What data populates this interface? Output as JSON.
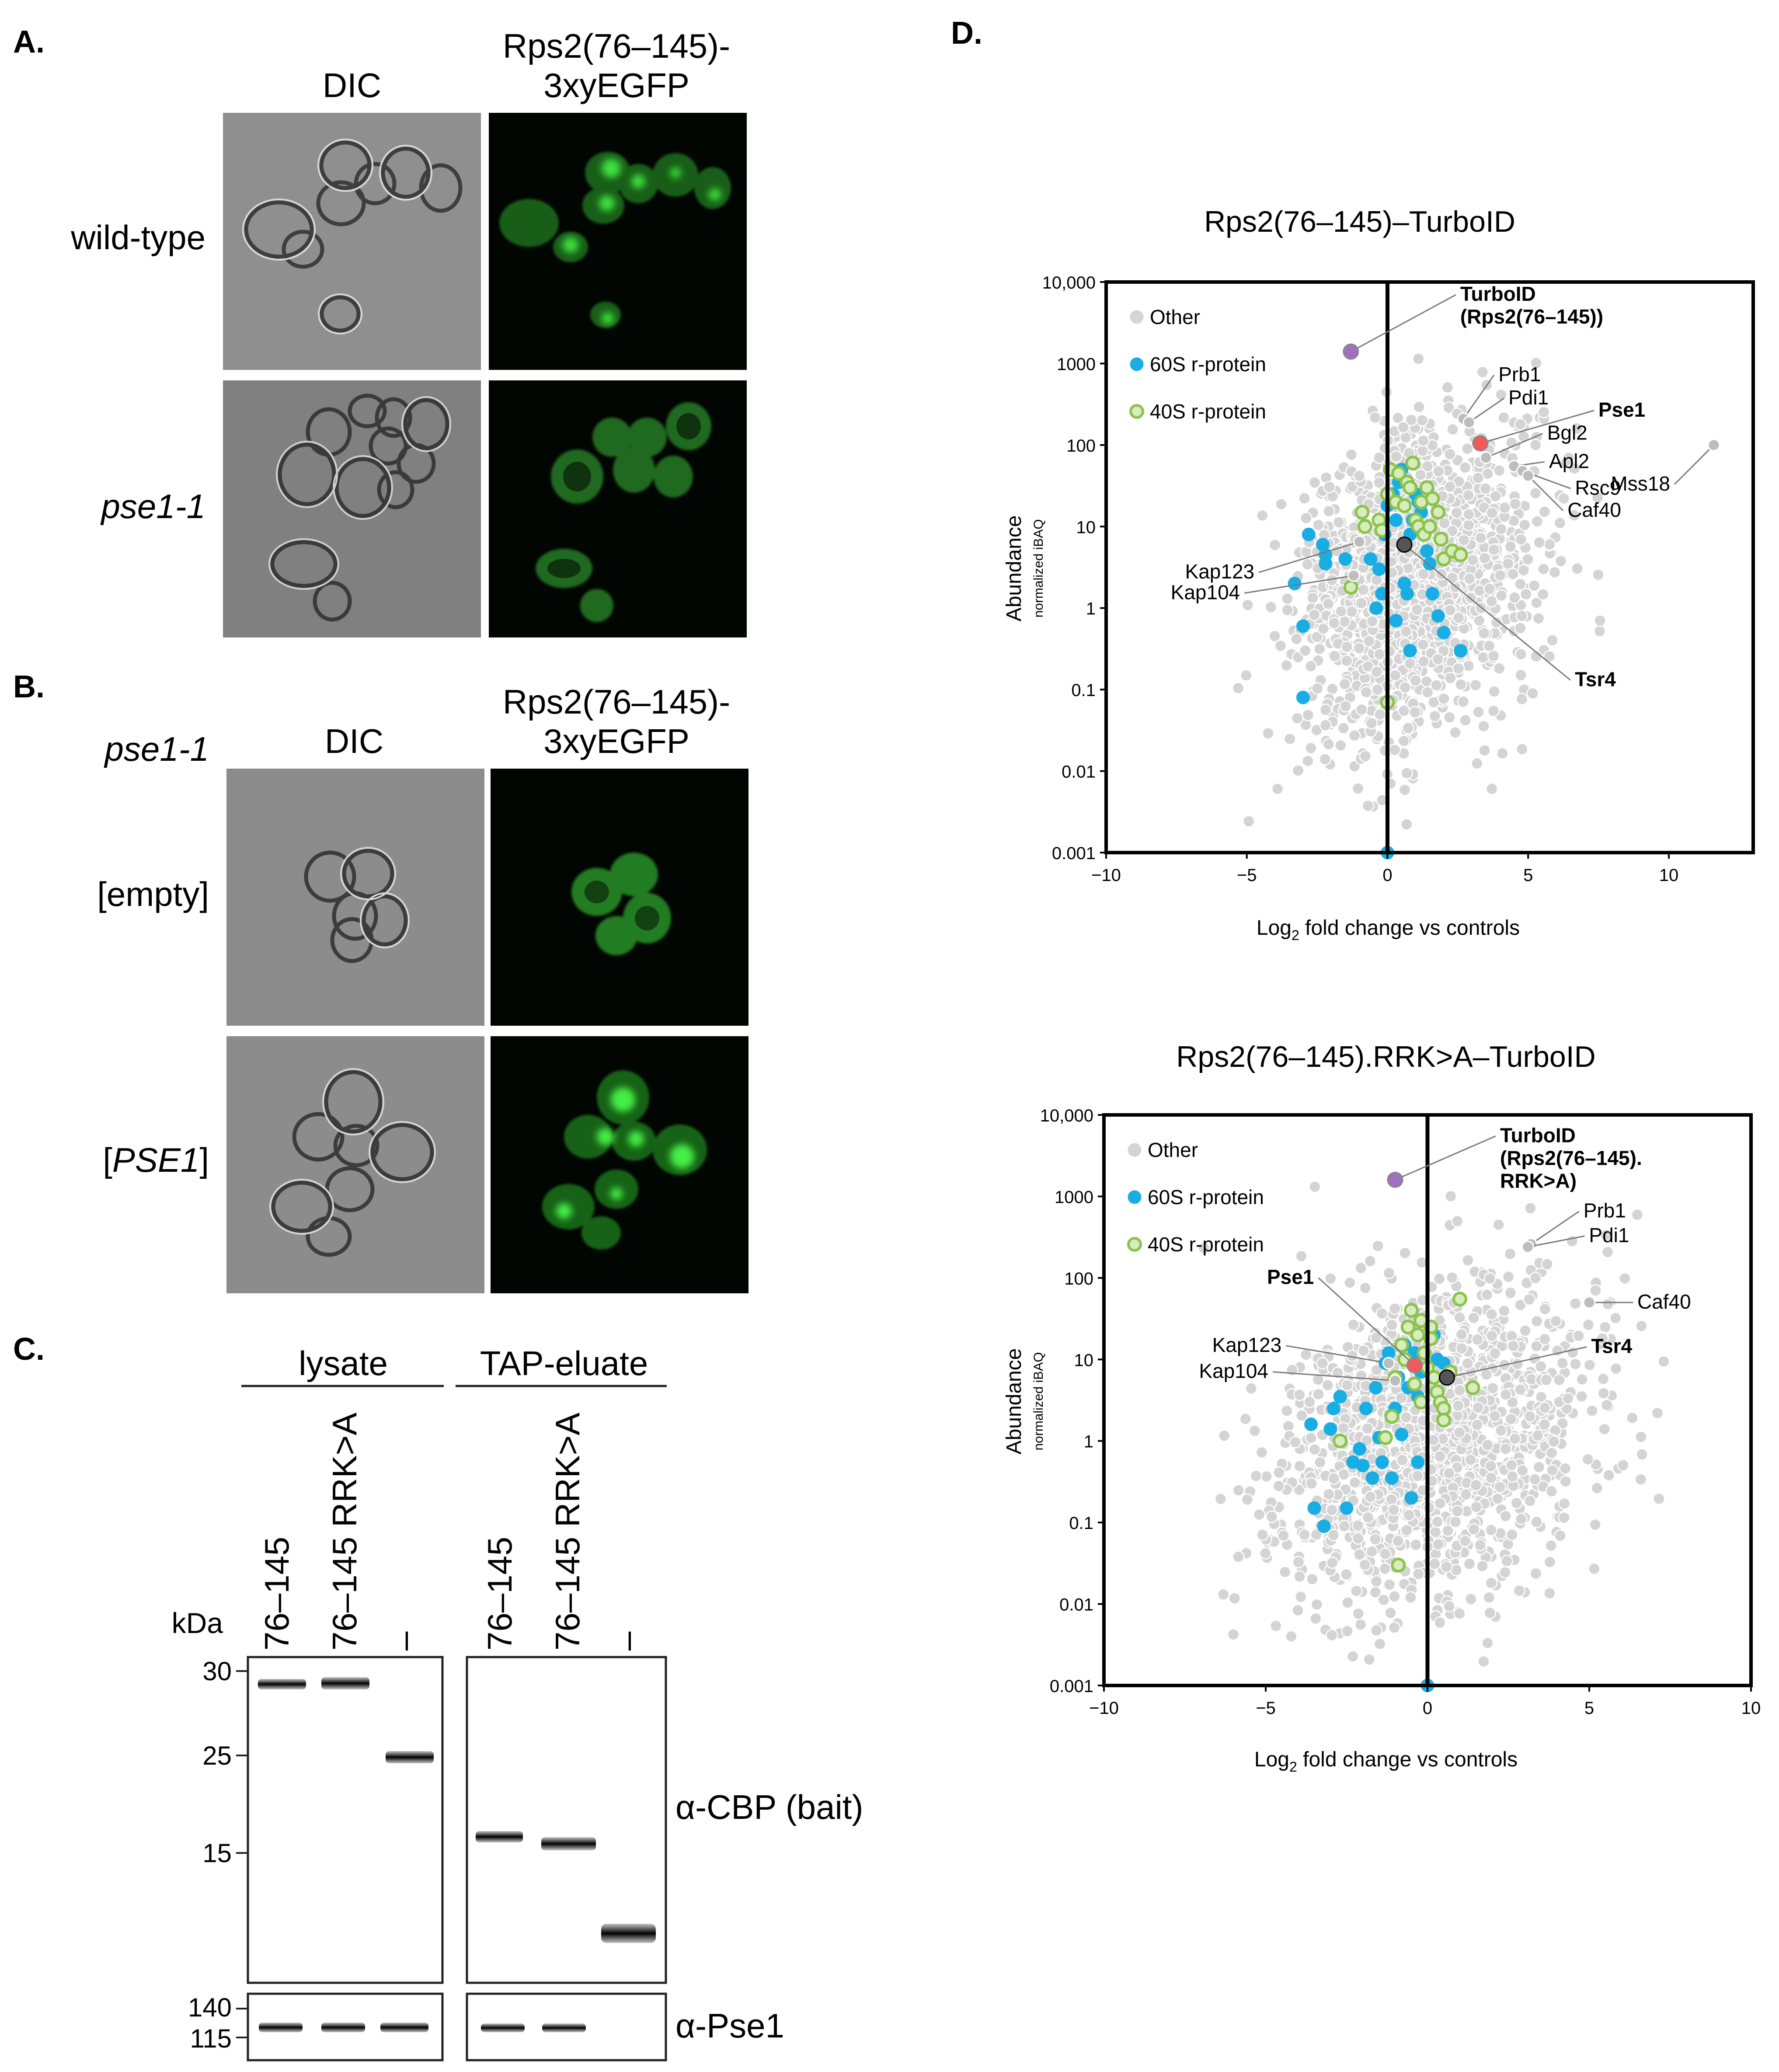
{
  "panels": {
    "A": {
      "letter": "A.",
      "col_dic": "DIC",
      "col_gfp_l1": "Rps2(76–145)-",
      "col_gfp_l2": "3xyEGFP",
      "row1": "wild-type",
      "row2": "pse1-1"
    },
    "B": {
      "letter": "B.",
      "strain": "pse1-1",
      "col_dic": "DIC",
      "col_gfp_l1": "Rps2(76–145)-",
      "col_gfp_l2": "3xyEGFP",
      "row1": "[empty]",
      "row2_open": "[",
      "row2_gene": "PSE1",
      "row2_close": "]"
    },
    "C": {
      "letter": "C.",
      "group1": "lysate",
      "group2": "TAP-eluate",
      "lanes": [
        "76–145",
        "76–145 RRK>A",
        "–"
      ],
      "kda": "kDa",
      "markers_top": [
        "30",
        "25",
        "15"
      ],
      "markers_bottom": [
        "140",
        "115"
      ],
      "ab1": "α-CBP (bait)",
      "ab2": "α-Pse1"
    },
    "D": {
      "letter": "D.",
      "legend": [
        "Other",
        "60S r-protein",
        "40S r-protein"
      ],
      "ylabel": "Abundance",
      "ylabel_sub": "normalized iBAQ",
      "xlabel_pre": "Log",
      "xlabel_sub": "2",
      "xlabel_post": " fold change vs controls"
    }
  },
  "colors": {
    "other": "#d4d4d4",
    "r60s": "#19aee3",
    "r40s": "#8bc34a",
    "bait": "#a070c0",
    "pse1": "#f05a5a",
    "tsr4": "#555555",
    "gfp": "#2ec22e"
  },
  "chart_data": [
    {
      "type": "scatter",
      "title": "Rps2(76–145)–TurboID",
      "xlabel": "Log2 fold change vs controls",
      "ylabel": "Abundance (normalized iBAQ)",
      "xlim": [
        -10,
        13
      ],
      "ylim": [
        0.001,
        10000
      ],
      "yscale": "log",
      "xticks": [
        "−10",
        "−5",
        "0",
        "5",
        "10"
      ],
      "yticks": [
        "0.001",
        "0.01",
        "0.1",
        "1",
        "10",
        "100",
        "1000",
        "10,000"
      ],
      "legend": [
        "Other",
        "60S r-protein",
        "40S r-protein"
      ],
      "highlighted": [
        {
          "label_lines": [
            "TurboID",
            "(Rps2(76–145))"
          ],
          "bold": true,
          "x": -1.3,
          "y": 1400,
          "kind": "bait"
        },
        {
          "label_lines": [
            "Pse1"
          ],
          "bold": true,
          "x": 3.3,
          "y": 105,
          "kind": "pse1"
        },
        {
          "label_lines": [
            "Tsr4"
          ],
          "bold": true,
          "x": 0.6,
          "y": 6.0,
          "kind": "tsr4"
        },
        {
          "label_lines": [
            "Prb1"
          ],
          "bold": false,
          "x": 2.7,
          "y": 210,
          "kind": "other"
        },
        {
          "label_lines": [
            "Pdi1"
          ],
          "bold": false,
          "x": 2.9,
          "y": 190,
          "kind": "other"
        },
        {
          "label_lines": [
            "Bgl2"
          ],
          "bold": false,
          "x": 3.5,
          "y": 70,
          "kind": "other"
        },
        {
          "label_lines": [
            "Apl2"
          ],
          "bold": false,
          "x": 4.5,
          "y": 55,
          "kind": "other"
        },
        {
          "label_lines": [
            "Rsc9"
          ],
          "bold": false,
          "x": 4.8,
          "y": 48,
          "kind": "other"
        },
        {
          "label_lines": [
            "Caf40"
          ],
          "bold": false,
          "x": 5.0,
          "y": 42,
          "kind": "other"
        },
        {
          "label_lines": [
            "Mss18"
          ],
          "bold": false,
          "x": 11.6,
          "y": 100,
          "kind": "other"
        },
        {
          "label_lines": [
            "Kap123"
          ],
          "bold": false,
          "x": -1.0,
          "y": 6.5,
          "kind": "other"
        },
        {
          "label_lines": [
            "Kap104"
          ],
          "bold": false,
          "x": -1.2,
          "y": 2.5,
          "kind": "other"
        }
      ],
      "series": [
        {
          "name": "60S r-protein",
          "points": [
            [
              -3.3,
              2.0
            ],
            [
              -3.0,
              0.6
            ],
            [
              -3.0,
              0.08
            ],
            [
              -2.8,
              8.0
            ],
            [
              -2.3,
              6.0
            ],
            [
              -2.2,
              3.5
            ],
            [
              -2.2,
              4.5
            ],
            [
              -1.5,
              4.0
            ],
            [
              -0.6,
              4.0
            ],
            [
              -0.3,
              3.0
            ],
            [
              -0.2,
              1.5
            ],
            [
              -0.1,
              8.0
            ],
            [
              0.0,
              18
            ],
            [
              0.2,
              25
            ],
            [
              0.3,
              12
            ],
            [
              0.4,
              35
            ],
            [
              0.5,
              50
            ],
            [
              0.6,
              2.0
            ],
            [
              0.7,
              1.5
            ],
            [
              0.8,
              8.0
            ],
            [
              0.8,
              0.3
            ],
            [
              1.0,
              25
            ],
            [
              1.2,
              15
            ],
            [
              1.4,
              5.0
            ],
            [
              1.5,
              3.5
            ],
            [
              1.6,
              1.5
            ],
            [
              1.8,
              0.8
            ],
            [
              2.0,
              0.5
            ],
            [
              2.6,
              0.3
            ],
            [
              0.0,
              0.001
            ],
            [
              0.9,
              12
            ],
            [
              -0.4,
              1.0
            ],
            [
              0.3,
              0.7
            ],
            [
              1.1,
              20
            ]
          ]
        },
        {
          "name": "40S r-protein",
          "points": [
            [
              -1.3,
              1.8
            ],
            [
              -0.9,
              15
            ],
            [
              -0.8,
              10
            ],
            [
              -0.3,
              12
            ],
            [
              -0.2,
              9
            ],
            [
              0.0,
              25
            ],
            [
              0.1,
              50
            ],
            [
              0.3,
              20
            ],
            [
              0.4,
              45
            ],
            [
              0.6,
              18
            ],
            [
              0.7,
              35
            ],
            [
              0.9,
              60
            ],
            [
              1.0,
              12
            ],
            [
              1.1,
              10
            ],
            [
              1.2,
              20
            ],
            [
              1.4,
              30
            ],
            [
              1.6,
              22
            ],
            [
              1.8,
              15
            ],
            [
              1.9,
              7.0
            ],
            [
              2.0,
              4.0
            ],
            [
              2.3,
              5.0
            ],
            [
              2.6,
              4.5
            ],
            [
              0.0,
              0.07
            ],
            [
              0.8,
              30
            ],
            [
              1.3,
              8.0
            ],
            [
              1.5,
              10
            ]
          ]
        },
        {
          "name": "Other",
          "note": "dense grey cloud of ~2000 proteins centred near x≈1, y≈2"
        }
      ]
    },
    {
      "type": "scatter",
      "title": "Rps2(76–145).RRK>A–TurboID",
      "xlabel": "Log2 fold change vs controls",
      "ylabel": "Abundance (normalized iBAQ)",
      "xlim": [
        -10,
        10
      ],
      "ylim": [
        0.001,
        10000
      ],
      "yscale": "log",
      "xticks": [
        "−10",
        "−5",
        "0",
        "5",
        "10"
      ],
      "yticks": [
        "0.001",
        "0.01",
        "0.1",
        "1",
        "10",
        "100",
        "1000",
        "10,000"
      ],
      "legend": [
        "Other",
        "60S r-protein",
        "40S r-protein"
      ],
      "highlighted": [
        {
          "label_lines": [
            "TurboID",
            "(Rps2(76–145).",
            "RRK>A)"
          ],
          "bold": true,
          "x": -1.0,
          "y": 1600,
          "kind": "bait"
        },
        {
          "label_lines": [
            "Pse1"
          ],
          "bold": true,
          "x": -0.4,
          "y": 8.5,
          "kind": "pse1"
        },
        {
          "label_lines": [
            "Tsr4"
          ],
          "bold": true,
          "x": 0.6,
          "y": 6.0,
          "kind": "tsr4"
        },
        {
          "label_lines": [
            "Prb1"
          ],
          "bold": false,
          "x": 3.2,
          "y": 260,
          "kind": "other"
        },
        {
          "label_lines": [
            "Pdi1"
          ],
          "bold": false,
          "x": 3.1,
          "y": 240,
          "kind": "other"
        },
        {
          "label_lines": [
            "Caf40"
          ],
          "bold": false,
          "x": 5.0,
          "y": 50,
          "kind": "other"
        },
        {
          "label_lines": [
            "Kap123"
          ],
          "bold": false,
          "x": -1.2,
          "y": 9.0,
          "kind": "other"
        },
        {
          "label_lines": [
            "Kap104"
          ],
          "bold": false,
          "x": -1.0,
          "y": 5.5,
          "kind": "other"
        }
      ],
      "series": [
        {
          "name": "60S r-protein",
          "points": [
            [
              -3.6,
              1.6
            ],
            [
              -3.5,
              0.15
            ],
            [
              -3.2,
              0.09
            ],
            [
              -3.0,
              1.4
            ],
            [
              -2.9,
              2.5
            ],
            [
              -2.7,
              3.5
            ],
            [
              -2.5,
              0.15
            ],
            [
              -2.3,
              0.55
            ],
            [
              -2.1,
              0.8
            ],
            [
              -2.0,
              0.5
            ],
            [
              -1.9,
              2.5
            ],
            [
              -1.7,
              0.35
            ],
            [
              -1.6,
              4.5
            ],
            [
              -1.5,
              1.1
            ],
            [
              -1.4,
              0.55
            ],
            [
              -1.3,
              9.0
            ],
            [
              -1.2,
              12
            ],
            [
              -1.1,
              0.35
            ],
            [
              -1.0,
              2.5
            ],
            [
              -0.9,
              6.0
            ],
            [
              -0.8,
              1.2
            ],
            [
              -0.7,
              15
            ],
            [
              -0.6,
              4.5
            ],
            [
              -0.5,
              0.2
            ],
            [
              -0.4,
              12
            ],
            [
              -0.3,
              3.5
            ],
            [
              -0.3,
              0.55
            ],
            [
              -0.2,
              7.0
            ],
            [
              0.0,
              0.001
            ],
            [
              0.2,
              20
            ],
            [
              0.3,
              10
            ],
            [
              0.5,
              9.0
            ]
          ]
        },
        {
          "name": "40S r-protein",
          "points": [
            [
              -2.7,
              1.0
            ],
            [
              -1.3,
              1.1
            ],
            [
              -1.1,
              2.0
            ],
            [
              -1.0,
              6.0
            ],
            [
              -0.9,
              0.03
            ],
            [
              -0.8,
              15
            ],
            [
              -0.7,
              10
            ],
            [
              -0.6,
              25
            ],
            [
              -0.5,
              40
            ],
            [
              -0.4,
              5.0
            ],
            [
              -0.3,
              20
            ],
            [
              -0.2,
              30
            ],
            [
              -0.1,
              12
            ],
            [
              0.0,
              8.0
            ],
            [
              0.1,
              25
            ],
            [
              0.2,
              6.0
            ],
            [
              0.3,
              4.0
            ],
            [
              0.4,
              3.0
            ],
            [
              0.5,
              2.5
            ],
            [
              0.5,
              1.8
            ],
            [
              0.7,
              7.0
            ],
            [
              1.0,
              55
            ],
            [
              1.4,
              4.5
            ],
            [
              -0.2,
              3.0
            ],
            [
              0.1,
              18
            ]
          ]
        },
        {
          "name": "Other",
          "note": "dense grey cloud of ~2000 proteins centred near x≈0, y≈1"
        }
      ]
    }
  ]
}
